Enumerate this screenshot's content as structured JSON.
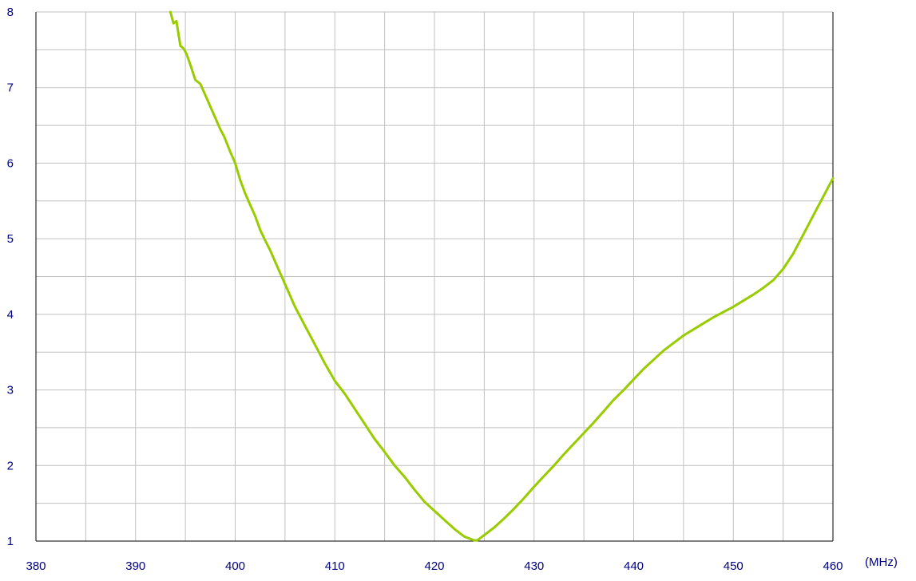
{
  "chart_data": {
    "type": "line",
    "title": "",
    "xlabel": "",
    "ylabel": "",
    "x_unit_label": "(MHz)",
    "xlim": [
      380,
      460
    ],
    "ylim": [
      1,
      8
    ],
    "x_ticks": [
      380,
      390,
      400,
      410,
      420,
      430,
      440,
      450,
      460
    ],
    "y_ticks": [
      1,
      2,
      3,
      4,
      5,
      6,
      7,
      8
    ],
    "x_minor_step": 5,
    "y_minor_step": 0.5,
    "grid": true,
    "legend": "none",
    "colors": {
      "line": "#99cc00",
      "grid": "#c0c0c0",
      "axis": "#000000",
      "tick_label": "#000080"
    },
    "series": [
      {
        "x": [
          393.5,
          393.8,
          394.1,
          394.5,
          394.8,
          395.1,
          395.5,
          396.0,
          396.5,
          397.0,
          397.5,
          398.0,
          398.5,
          398.9,
          399.5,
          400.0,
          400.5,
          401.0,
          401.5,
          402.0,
          402.5,
          403.0,
          403.5,
          404.0,
          405.0,
          406.0,
          407.0,
          408.0,
          409.0,
          410.0,
          411.0,
          412.0,
          413.0,
          414.0,
          415.0,
          416.0,
          417.0,
          418.0,
          419.0,
          420.0,
          421.0,
          422.0,
          423.0,
          424.0,
          424.3,
          425.0,
          426.0,
          427.0,
          428.0,
          429.0,
          430.0,
          431.0,
          432.0,
          433.0,
          434.0,
          435.0,
          436.0,
          437.0,
          438.0,
          439.0,
          440.0,
          441.0,
          442.0,
          443.0,
          444.0,
          445.0,
          446.0,
          447.0,
          448.0,
          449.0,
          450.0,
          451.0,
          452.0,
          453.0,
          454.0,
          455.0,
          456.0,
          457.0,
          458.0,
          459.0,
          460.0
        ],
        "y": [
          8.0,
          7.85,
          7.88,
          7.55,
          7.52,
          7.45,
          7.3,
          7.1,
          7.05,
          6.9,
          6.75,
          6.6,
          6.45,
          6.35,
          6.15,
          6.0,
          5.78,
          5.6,
          5.45,
          5.3,
          5.12,
          4.98,
          4.85,
          4.7,
          4.4,
          4.1,
          3.85,
          3.6,
          3.35,
          3.12,
          2.95,
          2.75,
          2.55,
          2.35,
          2.18,
          2.0,
          1.85,
          1.68,
          1.52,
          1.4,
          1.28,
          1.16,
          1.06,
          1.01,
          1.01,
          1.08,
          1.18,
          1.3,
          1.43,
          1.57,
          1.72,
          1.86,
          2.0,
          2.15,
          2.29,
          2.43,
          2.57,
          2.72,
          2.87,
          3.0,
          3.14,
          3.28,
          3.4,
          3.52,
          3.62,
          3.72,
          3.8,
          3.88,
          3.96,
          4.03,
          4.1,
          4.18,
          4.26,
          4.35,
          4.45,
          4.6,
          4.8,
          5.05,
          5.3,
          5.55,
          5.8
        ]
      }
    ]
  }
}
